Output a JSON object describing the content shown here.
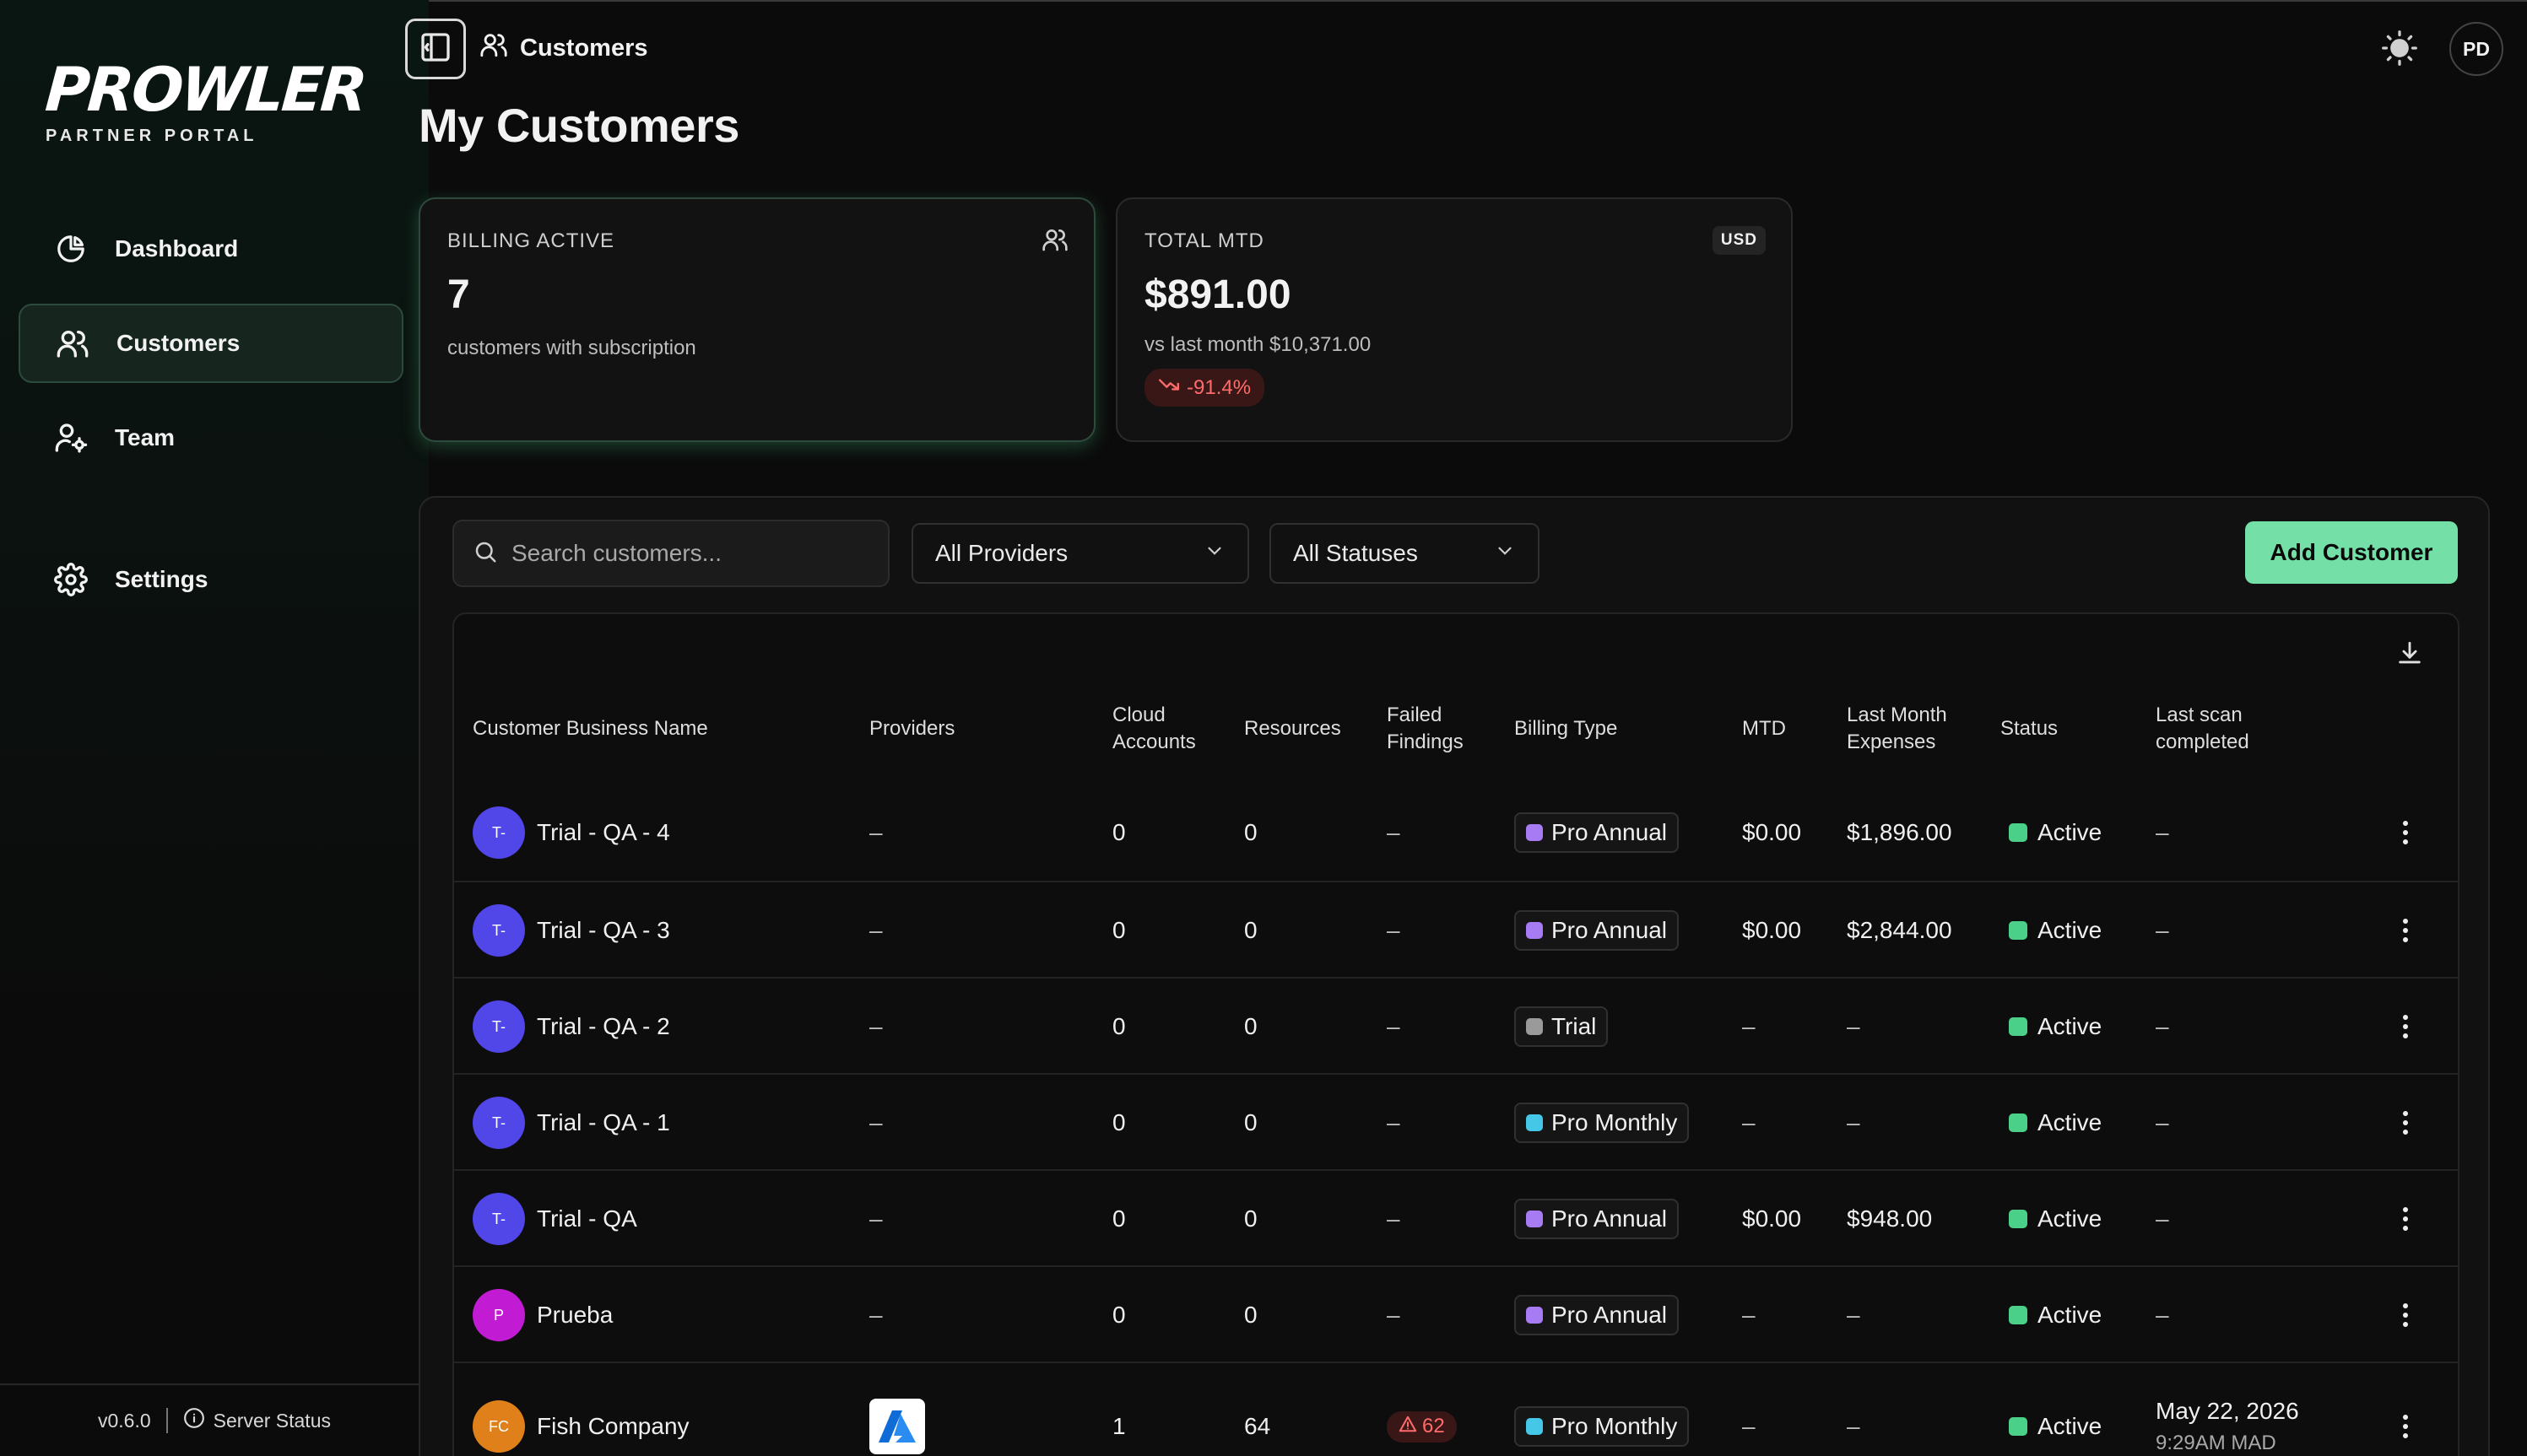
{
  "brand": {
    "name": "PROWLER",
    "subtitle": "PARTNER PORTAL"
  },
  "sidebar": {
    "items": [
      {
        "label": "Dashboard",
        "icon": "pie-chart-icon"
      },
      {
        "label": "Customers",
        "icon": "users-icon",
        "active": true
      },
      {
        "label": "Team",
        "icon": "user-settings-icon"
      },
      {
        "label": "Settings",
        "icon": "gear-icon"
      }
    ],
    "footer": {
      "version": "v0.6.0",
      "server_status": "Server Status"
    }
  },
  "header": {
    "breadcrumb": "Customers",
    "title": "My Customers",
    "user_initials": "PD"
  },
  "cards": {
    "billing": {
      "label": "BILLING ACTIVE",
      "value": "7",
      "sub": "customers with subscription"
    },
    "total": {
      "label": "TOTAL MTD",
      "currency": "USD",
      "value": "$891.00",
      "sub": "vs last month $10,371.00",
      "delta": "-91.4%"
    }
  },
  "toolbar": {
    "search_placeholder": "Search customers...",
    "providers_filter": "All Providers",
    "statuses_filter": "All Statuses",
    "add_label": "Add Customer"
  },
  "table": {
    "headers": {
      "name": "Customer Business Name",
      "providers": "Providers",
      "cloud1": "Cloud",
      "cloud2": "Accounts",
      "resources": "Resources",
      "failed1": "Failed",
      "failed2": "Findings",
      "billing": "Billing Type",
      "mtd": "MTD",
      "lastmonth1": "Last Month",
      "lastmonth2": "Expenses",
      "status": "Status",
      "lastscan1": "Last scan",
      "lastscan2": "completed"
    },
    "rows": [
      {
        "initials": "T-",
        "name": "Trial - QA - 4",
        "providers": "–",
        "cloud": "0",
        "resources": "0",
        "failed": "–",
        "billing": "Pro Annual",
        "mtd": "$0.00",
        "last_month": "$1,896.00",
        "status": "Active",
        "last_scan": "–"
      },
      {
        "initials": "T-",
        "name": "Trial - QA - 3",
        "providers": "–",
        "cloud": "0",
        "resources": "0",
        "failed": "–",
        "billing": "Pro Annual",
        "mtd": "$0.00",
        "last_month": "$2,844.00",
        "status": "Active",
        "last_scan": "–"
      },
      {
        "initials": "T-",
        "name": "Trial - QA - 2",
        "providers": "–",
        "cloud": "0",
        "resources": "0",
        "failed": "–",
        "billing": "Trial",
        "mtd": "–",
        "last_month": "–",
        "status": "Active",
        "last_scan": "–"
      },
      {
        "initials": "T-",
        "name": "Trial - QA - 1",
        "providers": "–",
        "cloud": "0",
        "resources": "0",
        "failed": "–",
        "billing": "Pro Monthly",
        "mtd": "–",
        "last_month": "–",
        "status": "Active",
        "last_scan": "–"
      },
      {
        "initials": "T-",
        "name": "Trial - QA",
        "providers": "–",
        "cloud": "0",
        "resources": "0",
        "failed": "–",
        "billing": "Pro Annual",
        "mtd": "$0.00",
        "last_month": "$948.00",
        "status": "Active",
        "last_scan": "–"
      },
      {
        "initials": "P",
        "name": "Prueba",
        "providers": "–",
        "cloud": "0",
        "resources": "0",
        "failed": "–",
        "billing": "Pro Annual",
        "mtd": "–",
        "last_month": "–",
        "status": "Active",
        "last_scan": "–"
      },
      {
        "initials": "FC",
        "name": "Fish Company",
        "providers": "azure-logo",
        "cloud": "1",
        "resources": "64",
        "failed": "62",
        "billing": "Pro Monthly",
        "mtd": "–",
        "last_month": "–",
        "status": "Active",
        "last_scan": "May 22, 2026",
        "last_scan_time": "9:29AM MAD"
      }
    ]
  },
  "colors": {
    "accent": "#74e0a8",
    "status_active": "#4bd08a",
    "pro_annual": "#a77bf3",
    "pro_monthly": "#45c8e8",
    "trial": "#9a9a9a",
    "avatar_trial": "#5146e8",
    "avatar_prueba": "#c21bd4",
    "avatar_fish": "#e0801a",
    "negative": "#ff6b6b"
  }
}
